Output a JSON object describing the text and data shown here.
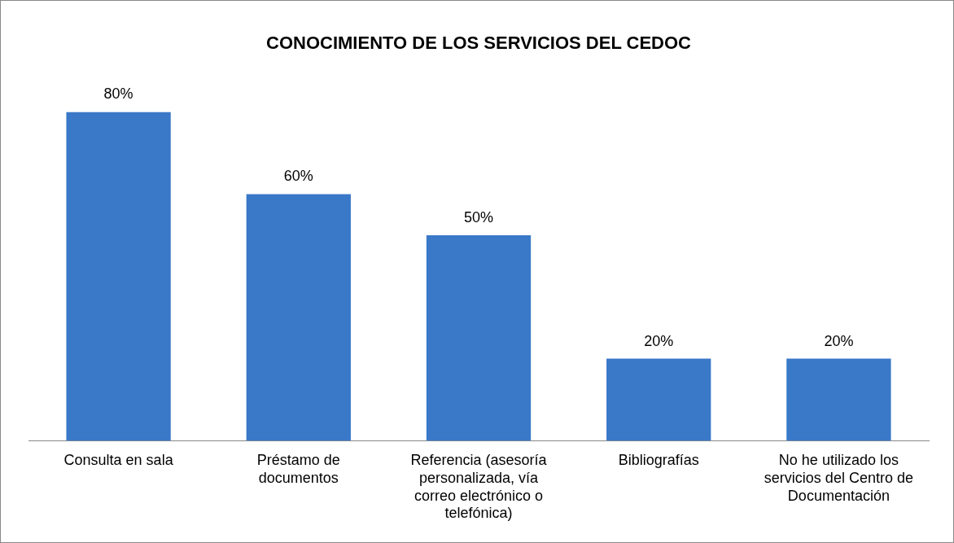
{
  "chart_data": {
    "type": "bar",
    "title": "CONOCIMIENTO DE LOS SERVICIOS DEL CEDOC",
    "categories": [
      "Consulta en sala",
      "Préstamo de documentos",
      "Referencia (asesoría personalizada, vía correo electrónico o telefónica)",
      "Bibliografías",
      "No he utilizado los servicios del Centro de Documentación"
    ],
    "values": [
      80,
      60,
      50,
      20,
      20
    ],
    "value_labels": [
      "80%",
      "60%",
      "50%",
      "20%",
      "20%"
    ],
    "color": "#3a78c8",
    "grid": false,
    "legend": false
  }
}
